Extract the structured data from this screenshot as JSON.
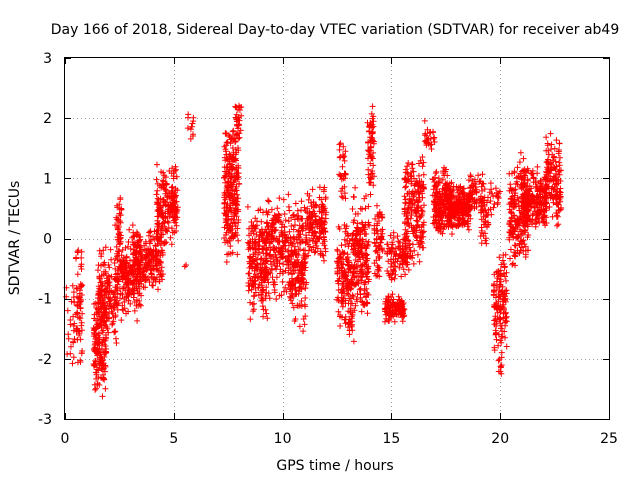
{
  "chart_data": {
    "type": "scatter",
    "title": "Day 166 of 2018, Sidereal Day-to-day VTEC variation (SDTVAR) for receiver ab49",
    "xlabel": "GPS time / hours",
    "ylabel": "SDTVAR / TECUs",
    "xlim": [
      0,
      25
    ],
    "ylim": [
      -3,
      3
    ],
    "xticks": [
      0,
      5,
      10,
      15,
      20,
      25
    ],
    "yticks": [
      -3,
      -2,
      -1,
      0,
      1,
      2,
      3
    ],
    "grid": true,
    "marker": "+",
    "color": "#ff0000",
    "seed": 166,
    "clusters": [
      {
        "x": [
          0.05,
          0.45
        ],
        "y": [
          -2.4,
          -0.6
        ],
        "n": 25
      },
      {
        "x": [
          0.5,
          0.8
        ],
        "y": [
          -2.5,
          0.2
        ],
        "n": 60
      },
      {
        "x": [
          1.3,
          1.9
        ],
        "y": [
          -2.7,
          -0.7
        ],
        "n": 160
      },
      {
        "x": [
          1.5,
          2.4
        ],
        "y": [
          -1.8,
          -0.1
        ],
        "n": 160
      },
      {
        "x": [
          2.3,
          2.6
        ],
        "y": [
          -0.6,
          0.95
        ],
        "n": 40
      },
      {
        "x": [
          2.4,
          3.5
        ],
        "y": [
          -1.4,
          0.2
        ],
        "n": 200
      },
      {
        "x": [
          3.1,
          4.5
        ],
        "y": [
          -0.9,
          0.25
        ],
        "n": 220
      },
      {
        "x": [
          4.2,
          5.2
        ],
        "y": [
          -0.2,
          1.3
        ],
        "n": 180
      },
      {
        "x": [
          5.6,
          5.9
        ],
        "y": [
          1.55,
          2.15
        ],
        "n": 12
      },
      {
        "x": [
          5.5,
          5.6
        ],
        "y": [
          -0.5,
          -0.4
        ],
        "n": 2
      },
      {
        "x": [
          7.3,
          8.0
        ],
        "y": [
          -0.5,
          1.9
        ],
        "n": 250
      },
      {
        "x": [
          7.8,
          8.1
        ],
        "y": [
          1.6,
          2.35
        ],
        "n": 30
      },
      {
        "x": [
          8.4,
          9.3
        ],
        "y": [
          -1.4,
          0.6
        ],
        "n": 200
      },
      {
        "x": [
          9.2,
          10.3
        ],
        "y": [
          -1.1,
          0.8
        ],
        "n": 200
      },
      {
        "x": [
          10.3,
          11.1
        ],
        "y": [
          -1.6,
          0.7
        ],
        "n": 200
      },
      {
        "x": [
          11.1,
          12.0
        ],
        "y": [
          -0.4,
          0.9
        ],
        "n": 150
      },
      {
        "x": [
          12.5,
          13.2
        ],
        "y": [
          -1.6,
          0.3
        ],
        "n": 150
      },
      {
        "x": [
          12.6,
          12.9
        ],
        "y": [
          0.4,
          1.8
        ],
        "n": 30
      },
      {
        "x": [
          13.2,
          14.0
        ],
        "y": [
          -1.4,
          0.9
        ],
        "n": 200
      },
      {
        "x": [
          13.0,
          13.3
        ],
        "y": [
          -1.8,
          -1.0
        ],
        "n": 20
      },
      {
        "x": [
          13.9,
          14.2
        ],
        "y": [
          0.6,
          2.3
        ],
        "n": 60
      },
      {
        "x": [
          14.2,
          14.6
        ],
        "y": [
          -0.8,
          0.6
        ],
        "n": 60
      },
      {
        "x": [
          14.7,
          15.6
        ],
        "y": [
          -1.4,
          -0.9
        ],
        "n": 120
      },
      {
        "x": [
          14.8,
          15.8
        ],
        "y": [
          -0.7,
          0.1
        ],
        "n": 100
      },
      {
        "x": [
          15.6,
          16.5
        ],
        "y": [
          -0.5,
          1.5
        ],
        "n": 200
      },
      {
        "x": [
          16.5,
          17.0
        ],
        "y": [
          1.4,
          2.0
        ],
        "n": 25
      },
      {
        "x": [
          16.9,
          17.8
        ],
        "y": [
          0.0,
          1.2
        ],
        "n": 220
      },
      {
        "x": [
          17.6,
          18.6
        ],
        "y": [
          0.1,
          0.9
        ],
        "n": 220
      },
      {
        "x": [
          18.5,
          19.3
        ],
        "y": [
          0.3,
          1.1
        ],
        "n": 70
      },
      {
        "x": [
          19.1,
          19.5
        ],
        "y": [
          -0.2,
          0.8
        ],
        "n": 40
      },
      {
        "x": [
          19.7,
          20.3
        ],
        "y": [
          -1.9,
          -0.2
        ],
        "n": 130
      },
      {
        "x": [
          19.9,
          20.1
        ],
        "y": [
          -2.3,
          -1.8
        ],
        "n": 10
      },
      {
        "x": [
          19.5,
          20.0
        ],
        "y": [
          0.3,
          1.0
        ],
        "n": 20
      },
      {
        "x": [
          20.4,
          21.3
        ],
        "y": [
          -0.6,
          1.5
        ],
        "n": 220
      },
      {
        "x": [
          21.0,
          22.1
        ],
        "y": [
          0.1,
          1.2
        ],
        "n": 220
      },
      {
        "x": [
          22.1,
          22.8
        ],
        "y": [
          0.1,
          1.8
        ],
        "n": 150
      }
    ]
  }
}
